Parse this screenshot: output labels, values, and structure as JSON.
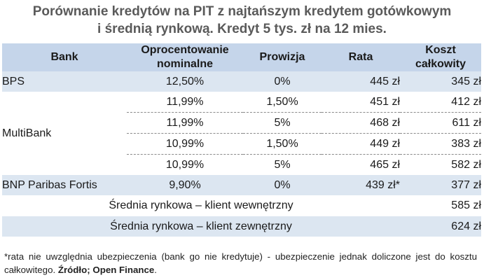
{
  "title_line1": "Porównanie kredytów na PIT z najtańszym kredytem gotówkowym",
  "title_line2": "i średnią rynkową. Kredyt 5 tys. zł na 12 mies.",
  "headers": {
    "bank": "Bank",
    "opr_line1": "Oprocentowanie",
    "opr_line2": "nominalne",
    "prowizja": "Prowizja",
    "rata": "Rata",
    "koszt_line1": "Koszt",
    "koszt_line2": "całkowity"
  },
  "rows": [
    {
      "bank": "BPS",
      "opr": "12,50%",
      "prowizja": "0%",
      "rata": "445 zł",
      "koszt": "345 zł"
    },
    {
      "bank": "MultiBank",
      "opr": "11,99%",
      "prowizja": "1,50%",
      "rata": "451 zł",
      "koszt": "412 zł"
    },
    {
      "opr": "11,99%",
      "prowizja": "5%",
      "rata": "468 zł",
      "koszt": "611 zł"
    },
    {
      "opr": "10,99%",
      "prowizja": "1,50%",
      "rata": "449 zł",
      "koszt": "383 zł"
    },
    {
      "opr": "10,99%",
      "prowizja": "5%",
      "rata": "465 zł",
      "koszt": "582 zł"
    },
    {
      "bank": "BNP Paribas Fortis",
      "opr": "9,90%",
      "prowizja": "0%",
      "rata": "439 zł*",
      "koszt": "377 zł"
    }
  ],
  "averages": [
    {
      "label": "Średnia rynkowa – klient wewnętrzny",
      "koszt": "585 zł"
    },
    {
      "label": "Średnia rynkowa – klient zewnętrzny",
      "koszt": "624 zł"
    }
  ],
  "footnote_text": "*rata nie uwzględnia ubezpieczenia (bank go nie kredytuje) - ubezpieczenie jednak doliczone jest do kosztu całkowitego. ",
  "footnote_source": "Źródło; Open Finance",
  "footnote_end": ".",
  "colors": {
    "header_bg": "#c5d5ea",
    "row_shade": "#dce6f1",
    "title": "#5a5a5a"
  }
}
